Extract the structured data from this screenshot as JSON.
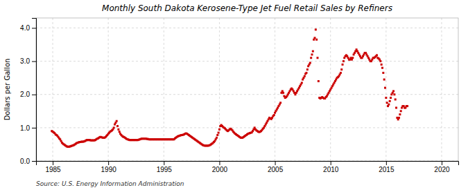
{
  "chart_data": {
    "type": "scatter",
    "title": "Monthly South Dakota Kerosene-Type Jet Fuel Retail Sales by Refiners",
    "y_label": "Dollars per Gallon",
    "source": "Source: U.S. Energy Information Administration",
    "color": "#cc0000",
    "marker": "square",
    "grid": true,
    "xlim": [
      1983.5,
      2021.5
    ],
    "ylim": [
      0.0,
      4.3
    ],
    "xticks": [
      1985,
      1990,
      1995,
      2000,
      2005,
      2010,
      2015,
      2020
    ],
    "yticks": [
      {
        "value": 0.0,
        "label": "0.0"
      },
      {
        "value": 1.0,
        "label": "1.0"
      },
      {
        "value": 2.0,
        "label": "2.0"
      },
      {
        "value": 3.0,
        "label": "3.0"
      },
      {
        "value": 4.0,
        "label": "4.0"
      }
    ],
    "x": [
      1984.917,
      1985.0,
      1985.083,
      1985.167,
      1985.25,
      1985.333,
      1985.417,
      1985.5,
      1985.583,
      1985.667,
      1985.75,
      1985.833,
      1985.917,
      1986.0,
      1986.083,
      1986.167,
      1986.25,
      1986.333,
      1986.417,
      1986.5,
      1986.583,
      1986.667,
      1986.75,
      1986.833,
      1986.917,
      1987.0,
      1987.083,
      1987.167,
      1987.25,
      1987.333,
      1987.417,
      1987.5,
      1987.583,
      1987.667,
      1987.75,
      1987.833,
      1987.917,
      1988.0,
      1988.083,
      1988.167,
      1988.25,
      1988.333,
      1988.417,
      1988.5,
      1988.583,
      1988.667,
      1988.75,
      1988.833,
      1988.917,
      1989.0,
      1989.083,
      1989.167,
      1989.25,
      1989.333,
      1989.417,
      1989.5,
      1989.583,
      1989.667,
      1989.75,
      1989.833,
      1989.917,
      1990.0,
      1990.083,
      1990.167,
      1990.25,
      1990.333,
      1990.417,
      1990.5,
      1990.583,
      1990.667,
      1990.75,
      1990.833,
      1990.917,
      1991.0,
      1991.083,
      1991.167,
      1991.25,
      1991.333,
      1991.417,
      1991.5,
      1991.583,
      1991.667,
      1991.75,
      1991.833,
      1991.917,
      1992.0,
      1992.083,
      1992.167,
      1992.25,
      1992.333,
      1992.417,
      1992.5,
      1992.583,
      1992.667,
      1992.75,
      1992.833,
      1992.917,
      1993.0,
      1993.083,
      1993.167,
      1993.25,
      1993.333,
      1993.417,
      1993.5,
      1993.583,
      1993.667,
      1993.75,
      1993.833,
      1993.917,
      1994.0,
      1994.083,
      1994.167,
      1994.25,
      1994.333,
      1994.417,
      1994.5,
      1994.583,
      1994.667,
      1994.75,
      1994.833,
      1994.917,
      1995.0,
      1995.083,
      1995.167,
      1995.25,
      1995.333,
      1995.417,
      1995.5,
      1995.583,
      1995.667,
      1995.75,
      1995.833,
      1995.917,
      1996.0,
      1996.083,
      1996.167,
      1996.25,
      1996.333,
      1996.417,
      1996.5,
      1996.583,
      1996.667,
      1996.75,
      1996.833,
      1996.917,
      1997.0,
      1997.083,
      1997.167,
      1997.25,
      1997.333,
      1997.417,
      1997.5,
      1997.583,
      1997.667,
      1997.75,
      1997.833,
      1997.917,
      1998.0,
      1998.083,
      1998.167,
      1998.25,
      1998.333,
      1998.417,
      1998.5,
      1998.583,
      1998.667,
      1998.75,
      1998.833,
      1998.917,
      1999.0,
      1999.083,
      1999.167,
      1999.25,
      1999.333,
      1999.417,
      1999.5,
      1999.583,
      1999.667,
      1999.75,
      1999.833,
      1999.917,
      2000.0,
      2000.083,
      2000.167,
      2000.25,
      2000.333,
      2000.417,
      2000.5,
      2000.583,
      2000.667,
      2000.75,
      2000.833,
      2000.917,
      2001.0,
      2001.083,
      2001.167,
      2001.25,
      2001.333,
      2001.417,
      2001.5,
      2001.583,
      2001.667,
      2001.75,
      2001.833,
      2001.917,
      2002.0,
      2002.083,
      2002.167,
      2002.25,
      2002.333,
      2002.417,
      2002.5,
      2002.583,
      2002.667,
      2002.75,
      2002.833,
      2002.917,
      2003.0,
      2003.083,
      2003.167,
      2003.25,
      2003.333,
      2003.417,
      2003.5,
      2003.583,
      2003.667,
      2003.75,
      2003.833,
      2003.917,
      2004.0,
      2004.083,
      2004.167,
      2004.25,
      2004.333,
      2004.417,
      2004.5,
      2004.583,
      2004.667,
      2004.75,
      2004.833,
      2004.917,
      2005.0,
      2005.083,
      2005.167,
      2005.25,
      2005.333,
      2005.417,
      2005.5,
      2005.583,
      2005.667,
      2005.75,
      2005.833,
      2005.917,
      2006.0,
      2006.083,
      2006.167,
      2006.25,
      2006.333,
      2006.417,
      2006.5,
      2006.583,
      2006.667,
      2006.75,
      2006.833,
      2006.917,
      2007.0,
      2007.083,
      2007.167,
      2007.25,
      2007.333,
      2007.417,
      2007.5,
      2007.583,
      2007.667,
      2007.75,
      2007.833,
      2007.917,
      2008.0,
      2008.083,
      2008.167,
      2008.25,
      2008.333,
      2008.417,
      2008.5,
      2008.583,
      2008.667,
      2008.75,
      2008.833,
      2008.917,
      2009.0,
      2009.083,
      2009.167,
      2009.25,
      2009.333,
      2009.417,
      2009.5,
      2009.583,
      2009.667,
      2009.75,
      2009.833,
      2009.917,
      2010.0,
      2010.083,
      2010.167,
      2010.25,
      2010.333,
      2010.417,
      2010.5,
      2010.583,
      2010.667,
      2010.75,
      2010.833,
      2010.917,
      2011.0,
      2011.083,
      2011.167,
      2011.25,
      2011.333,
      2011.417,
      2011.5,
      2011.583,
      2011.667,
      2011.75,
      2011.833,
      2011.917,
      2012.0,
      2012.083,
      2012.167,
      2012.25,
      2012.333,
      2012.417,
      2012.5,
      2012.583,
      2012.667,
      2012.75,
      2012.833,
      2012.917,
      2013.0,
      2013.083,
      2013.167,
      2013.25,
      2013.333,
      2013.417,
      2013.5,
      2013.583,
      2013.667,
      2013.75,
      2013.833,
      2013.917,
      2014.0,
      2014.083,
      2014.167,
      2014.25,
      2014.333,
      2014.417,
      2014.5,
      2014.583,
      2014.667,
      2014.75,
      2014.833,
      2014.917,
      2015.0,
      2015.083,
      2015.167,
      2015.25,
      2015.333,
      2015.417,
      2015.5,
      2015.583,
      2015.667,
      2015.75,
      2015.833,
      2015.917,
      2016.0,
      2016.083,
      2016.167,
      2016.25,
      2016.333,
      2016.417,
      2016.5,
      2016.583,
      2016.667,
      2016.75,
      2016.833,
      2016.917
    ],
    "values": [
      0.9,
      0.88,
      0.86,
      0.84,
      0.8,
      0.78,
      0.76,
      0.72,
      0.68,
      0.65,
      0.6,
      0.55,
      0.52,
      0.5,
      0.48,
      0.46,
      0.44,
      0.43,
      0.43,
      0.43,
      0.44,
      0.45,
      0.46,
      0.47,
      0.48,
      0.5,
      0.52,
      0.54,
      0.55,
      0.56,
      0.57,
      0.57,
      0.58,
      0.58,
      0.58,
      0.59,
      0.6,
      0.62,
      0.63,
      0.63,
      0.63,
      0.63,
      0.62,
      0.62,
      0.62,
      0.62,
      0.62,
      0.63,
      0.65,
      0.67,
      0.68,
      0.7,
      0.72,
      0.72,
      0.71,
      0.7,
      0.7,
      0.7,
      0.72,
      0.75,
      0.78,
      0.82,
      0.85,
      0.88,
      0.9,
      0.92,
      0.95,
      1.0,
      1.1,
      1.15,
      1.2,
      1.05,
      0.95,
      0.88,
      0.82,
      0.78,
      0.75,
      0.73,
      0.72,
      0.7,
      0.68,
      0.66,
      0.65,
      0.64,
      0.63,
      0.63,
      0.63,
      0.63,
      0.63,
      0.63,
      0.63,
      0.63,
      0.63,
      0.63,
      0.64,
      0.65,
      0.66,
      0.67,
      0.67,
      0.67,
      0.67,
      0.67,
      0.67,
      0.66,
      0.66,
      0.65,
      0.65,
      0.65,
      0.65,
      0.65,
      0.65,
      0.65,
      0.65,
      0.65,
      0.65,
      0.65,
      0.65,
      0.65,
      0.65,
      0.65,
      0.65,
      0.65,
      0.65,
      0.65,
      0.65,
      0.65,
      0.65,
      0.65,
      0.65,
      0.65,
      0.65,
      0.65,
      0.65,
      0.68,
      0.7,
      0.72,
      0.74,
      0.75,
      0.76,
      0.77,
      0.78,
      0.78,
      0.79,
      0.8,
      0.82,
      0.83,
      0.82,
      0.8,
      0.78,
      0.76,
      0.74,
      0.72,
      0.7,
      0.68,
      0.66,
      0.64,
      0.62,
      0.6,
      0.58,
      0.56,
      0.54,
      0.52,
      0.5,
      0.48,
      0.47,
      0.46,
      0.46,
      0.46,
      0.46,
      0.46,
      0.47,
      0.48,
      0.5,
      0.52,
      0.54,
      0.57,
      0.6,
      0.65,
      0.7,
      0.78,
      0.85,
      0.95,
      1.05,
      1.08,
      1.05,
      1.02,
      1.0,
      0.98,
      0.95,
      0.92,
      0.9,
      0.92,
      0.95,
      0.97,
      0.95,
      0.92,
      0.88,
      0.85,
      0.82,
      0.8,
      0.78,
      0.76,
      0.74,
      0.72,
      0.7,
      0.7,
      0.7,
      0.72,
      0.74,
      0.76,
      0.78,
      0.8,
      0.82,
      0.83,
      0.84,
      0.85,
      0.86,
      0.9,
      0.95,
      1.0,
      0.95,
      0.92,
      0.9,
      0.88,
      0.87,
      0.88,
      0.9,
      0.93,
      0.97,
      1.0,
      1.05,
      1.1,
      1.15,
      1.2,
      1.25,
      1.3,
      1.28,
      1.26,
      1.3,
      1.35,
      1.38,
      1.45,
      1.5,
      1.55,
      1.6,
      1.65,
      1.7,
      1.75,
      2.05,
      2.1,
      2.05,
      1.95,
      1.9,
      1.92,
      1.95,
      2.0,
      2.05,
      2.1,
      2.15,
      2.18,
      2.15,
      2.1,
      2.05,
      2.0,
      2.05,
      2.1,
      2.15,
      2.2,
      2.25,
      2.3,
      2.35,
      2.45,
      2.5,
      2.55,
      2.62,
      2.65,
      2.75,
      2.85,
      2.9,
      2.95,
      3.1,
      3.2,
      3.3,
      3.65,
      3.7,
      3.95,
      3.65,
      3.1,
      2.4,
      1.9,
      1.88,
      1.9,
      1.92,
      1.9,
      1.88,
      1.88,
      1.92,
      1.95,
      2.0,
      2.05,
      2.1,
      2.15,
      2.2,
      2.25,
      2.3,
      2.35,
      2.4,
      2.45,
      2.5,
      2.52,
      2.55,
      2.6,
      2.65,
      2.75,
      2.9,
      3.0,
      3.1,
      3.15,
      3.18,
      3.15,
      3.1,
      3.05,
      3.05,
      3.1,
      3.05,
      3.1,
      3.2,
      3.25,
      3.3,
      3.35,
      3.3,
      3.25,
      3.2,
      3.15,
      3.1,
      3.1,
      3.15,
      3.2,
      3.25,
      3.25,
      3.2,
      3.15,
      3.1,
      3.05,
      3.0,
      3.0,
      3.05,
      3.1,
      3.1,
      3.12,
      3.15,
      3.18,
      3.1,
      3.08,
      3.05,
      3.0,
      2.9,
      2.8,
      2.65,
      2.45,
      2.2,
      1.9,
      1.75,
      1.65,
      1.7,
      1.8,
      1.9,
      2.0,
      2.05,
      2.1,
      2.0,
      1.85,
      1.6,
      1.3,
      1.25,
      1.3,
      1.4,
      1.5,
      1.6,
      1.65,
      1.65,
      1.6,
      1.6,
      1.65,
      1.65
    ]
  }
}
